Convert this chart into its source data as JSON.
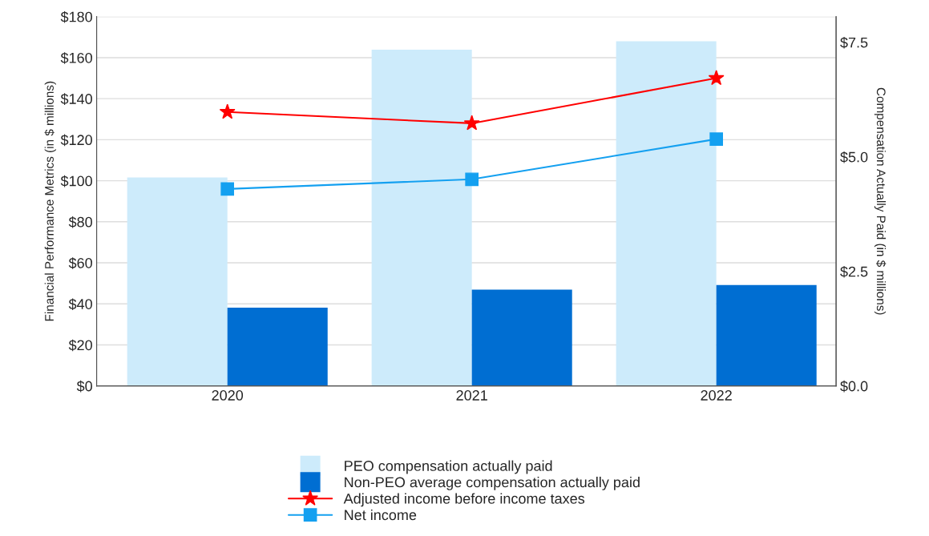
{
  "chart_data": {
    "type": "bar",
    "categories": [
      "2020",
      "2021",
      "2022"
    ],
    "ylabel": "Financial Performance Metrics (in $ millions)",
    "y2label": "Compensation Actually Paid (in $ millions)",
    "ylim": [
      0,
      180
    ],
    "yticks": [
      {
        "value": 0,
        "label": "$0"
      },
      {
        "value": 20,
        "label": "$20"
      },
      {
        "value": 40,
        "label": "$40"
      },
      {
        "value": 60,
        "label": "$60"
      },
      {
        "value": 80,
        "label": "$80"
      },
      {
        "value": 100,
        "label": "$100"
      },
      {
        "value": 120,
        "label": "$120"
      },
      {
        "value": 140,
        "label": "$140"
      },
      {
        "value": 160,
        "label": "$160"
      },
      {
        "value": 180,
        "label": "$180"
      }
    ],
    "y2lim": [
      0,
      8.06
    ],
    "y2ticks": [
      {
        "value": 0,
        "label": "$0.0"
      },
      {
        "value": 2.5,
        "label": "$2.5"
      },
      {
        "value": 5,
        "label": "$5.0"
      },
      {
        "value": 7.5,
        "label": "$7.5"
      }
    ],
    "series": [
      {
        "name": "PEO compensation actually paid",
        "axis": "y2",
        "color": "#cdebfb",
        "values": [
          4.55,
          7.34,
          7.52
        ]
      },
      {
        "name": "Non-PEO average compensation actually paid",
        "axis": "y2",
        "color": "#006ed2",
        "values": [
          1.71,
          2.1,
          2.2
        ]
      },
      {
        "name": "Adjusted income before income taxes",
        "type": "line",
        "axis": "y",
        "color": "#ff0000",
        "marker": "star",
        "values": [
          133.5,
          128,
          150
        ]
      },
      {
        "name": "Net income",
        "type": "line",
        "axis": "y",
        "color": "#14a0f0",
        "marker": "square",
        "values": [
          96,
          100.7,
          120.3
        ]
      }
    ],
    "grid": "y",
    "legend": "bottom"
  }
}
